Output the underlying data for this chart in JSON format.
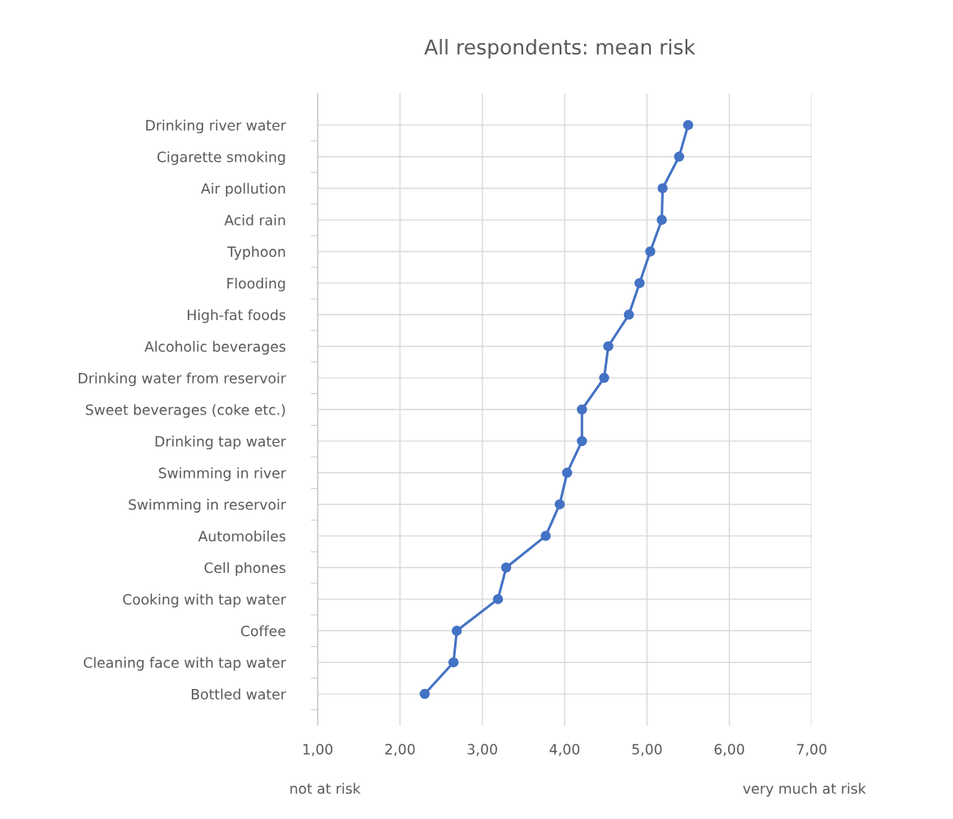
{
  "chart_data": {
    "type": "line",
    "orientation": "horizontal",
    "title": "All respondents: mean risk",
    "categories": [
      "Drinking river water",
      "Cigarette smoking",
      "Air pollution",
      "Acid rain",
      "Typhoon",
      "Flooding",
      "High-fat foods",
      "Alcoholic beverages",
      "Drinking water from reservoir",
      "Sweet beverages (coke etc.)",
      "Drinking tap water",
      "Swimming in river",
      "Swimming in reservoir",
      "Automobiles",
      "Cell phones",
      "Cooking with tap water",
      "Coffee",
      "Cleaning face with tap water",
      "Bottled water"
    ],
    "series": [
      {
        "color": "#4472c4",
        "values": [
          5.5,
          5.39,
          5.19,
          5.18,
          5.04,
          4.91,
          4.78,
          4.53,
          4.48,
          4.21,
          4.21,
          4.03,
          3.94,
          3.77,
          3.29,
          3.19,
          2.69,
          2.65,
          2.3
        ]
      }
    ],
    "xlim": [
      1,
      7
    ],
    "xticks": [
      {
        "value": 1,
        "label": "1,00"
      },
      {
        "value": 2,
        "label": "2,00"
      },
      {
        "value": 3,
        "label": "3,00"
      },
      {
        "value": 4,
        "label": "4,00"
      },
      {
        "value": 5,
        "label": "5,00"
      },
      {
        "value": 6,
        "label": "6,00"
      },
      {
        "value": 7,
        "label": "7,00"
      }
    ],
    "annotations": [
      "not at risk",
      "very much at risk"
    ],
    "grid": true,
    "marker": "circle",
    "line_style": "solid",
    "legend": false
  }
}
